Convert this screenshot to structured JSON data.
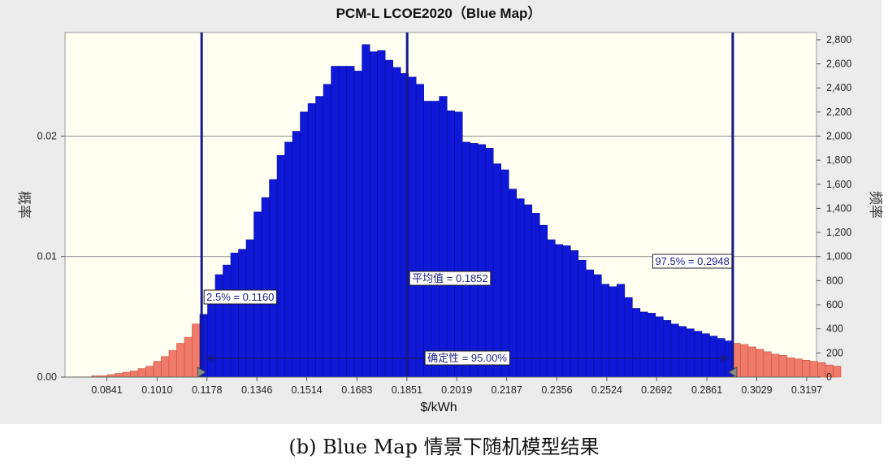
{
  "caption": "(b) Blue Map 情景下随机模型结果",
  "chart_data": {
    "type": "bar",
    "title": "PCM-L LCOE2020（Blue Map）",
    "xlabel": "$/kWh",
    "ylabel_left": "概率",
    "ylabel_right": "频率",
    "x_range": [
      0.07,
      0.323
    ],
    "y_left_range": [
      0,
      0.0286
    ],
    "y_right_range": [
      0,
      2860
    ],
    "x_ticks": [
      "0.0841",
      "0.1010",
      "0.1178",
      "0.1346",
      "0.1514",
      "0.1683",
      "0.1851",
      "0.2019",
      "0.2187",
      "0.2356",
      "0.2524",
      "0.2692",
      "0.2861",
      "0.3029",
      "0.3197"
    ],
    "y_left_ticks": [
      "0.00",
      "0.01",
      "0.02"
    ],
    "y_right_ticks": [
      "0",
      "200",
      "400",
      "600",
      "800",
      "1,000",
      "1,200",
      "1,400",
      "1,600",
      "1,800",
      "2,000",
      "2,200",
      "2,400",
      "2,600",
      "2,800"
    ],
    "grid": true,
    "bin_start": 0.079,
    "bin_width": 0.0026,
    "probabilities": [
      0.0001,
      0.0001,
      0.0002,
      0.0003,
      0.0004,
      0.0005,
      0.0007,
      0.0009,
      0.0013,
      0.0017,
      0.0022,
      0.0028,
      0.0033,
      0.0044,
      0.0052,
      0.0066,
      0.0085,
      0.0093,
      0.0103,
      0.0106,
      0.0114,
      0.0137,
      0.0149,
      0.0164,
      0.0184,
      0.0195,
      0.0204,
      0.022,
      0.0227,
      0.0233,
      0.0243,
      0.0258,
      0.0258,
      0.0258,
      0.0254,
      0.0276,
      0.027,
      0.0271,
      0.0263,
      0.0257,
      0.0252,
      0.0249,
      0.0243,
      0.0229,
      0.0229,
      0.0233,
      0.0221,
      0.022,
      0.0195,
      0.0194,
      0.0193,
      0.019,
      0.0177,
      0.0172,
      0.0156,
      0.0148,
      0.0143,
      0.0136,
      0.0126,
      0.0114,
      0.011,
      0.0109,
      0.0105,
      0.0097,
      0.0089,
      0.0085,
      0.0077,
      0.0075,
      0.0077,
      0.0066,
      0.0057,
      0.0054,
      0.0053,
      0.005,
      0.0047,
      0.0044,
      0.0042,
      0.004,
      0.0038,
      0.0036,
      0.0034,
      0.0032,
      0.003,
      0.0028,
      0.0027,
      0.0025,
      0.0023,
      0.0021,
      0.0019,
      0.0018,
      0.0016,
      0.0015,
      0.0014,
      0.0013,
      0.0012,
      0.001,
      0.0009
    ],
    "left_cut": 0.116,
    "right_cut": 0.2948,
    "colors": {
      "tail": "#f07b6a",
      "center": "#0f18d6",
      "plot_bg": "#fffff2",
      "marker": "#14198e"
    },
    "annotations": {
      "lower": "2.5% = 0.1160",
      "mean": "平均值 = 0.1852",
      "upper": "97.5% = 0.2948",
      "certainty": "确定性 = 95.00%"
    },
    "mean_value": 0.1852
  }
}
